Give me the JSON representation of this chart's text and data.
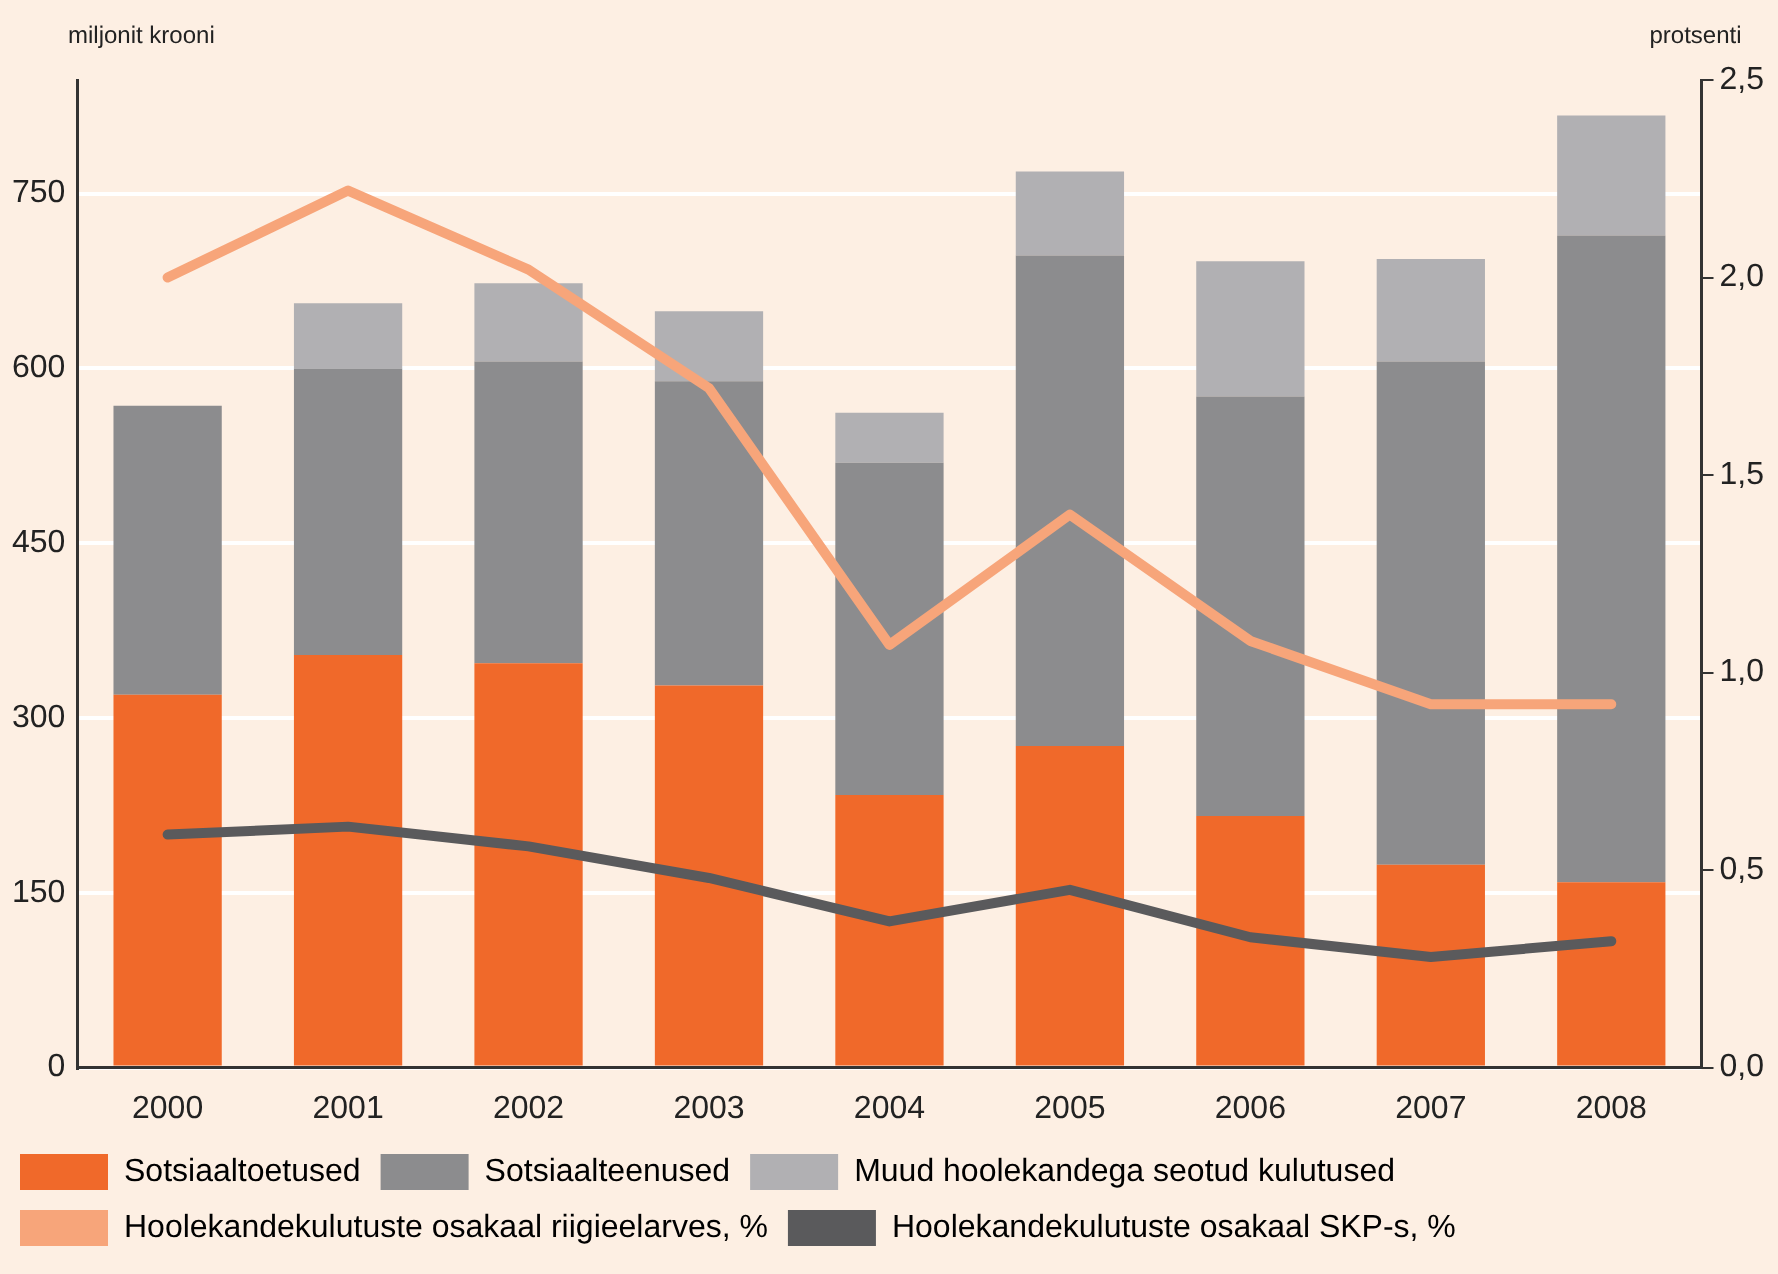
{
  "chart_data": {
    "type": "bar",
    "stacked": true,
    "ylabel": "miljonit krooni",
    "y2label": "protsenti",
    "categories": [
      "2000",
      "2001",
      "2002",
      "2003",
      "2004",
      "2005",
      "2006",
      "2007",
      "2008"
    ],
    "series": [
      {
        "name": "Sotsiaaltoetused",
        "color": "#f0692a",
        "values": [
          320,
          354,
          347,
          328,
          234,
          276,
          216,
          174,
          159
        ]
      },
      {
        "name": "Sotsiaalteenused",
        "color": "#8c8c8e",
        "values": [
          248,
          246,
          259,
          261,
          285,
          421,
          360,
          432,
          555
        ]
      },
      {
        "name": "Muud hoolekandega seotud kulutused",
        "color": "#b1b0b3",
        "values": [
          null,
          56,
          67,
          60,
          43,
          72,
          116,
          88,
          103
        ]
      },
      {
        "name": "Hoolekandekulutuste osakaal riigieelarves, %",
        "type": "line",
        "axis": "y2",
        "color": "#f7a57a",
        "values": [
          2.0,
          2.22,
          2.02,
          1.72,
          1.07,
          1.4,
          1.08,
          0.92,
          0.92
        ]
      },
      {
        "name": "Hoolekandekulutuste osakaal SKP-s, %",
        "type": "line",
        "axis": "y2",
        "color": "#5a5a5c",
        "values": [
          0.59,
          0.61,
          0.56,
          0.48,
          0.37,
          0.45,
          0.33,
          0.28,
          0.32
        ]
      }
    ],
    "ylim": [
      0,
      847.5
    ],
    "yticks": [
      0,
      150,
      300,
      450,
      600,
      750
    ],
    "y2lim": [
      0,
      2.5
    ],
    "y2ticks": [
      {
        "value": 0,
        "label": "0,0"
      },
      {
        "value": 0.5,
        "label": "0,5"
      },
      {
        "value": 1,
        "label": "1,0"
      },
      {
        "value": 1.5,
        "label": "1,5"
      },
      {
        "value": 2,
        "label": "2,0"
      },
      {
        "value": 2.5,
        "label": "2,5"
      }
    ],
    "grid": "y",
    "legend": "bottom",
    "marker": "none"
  }
}
